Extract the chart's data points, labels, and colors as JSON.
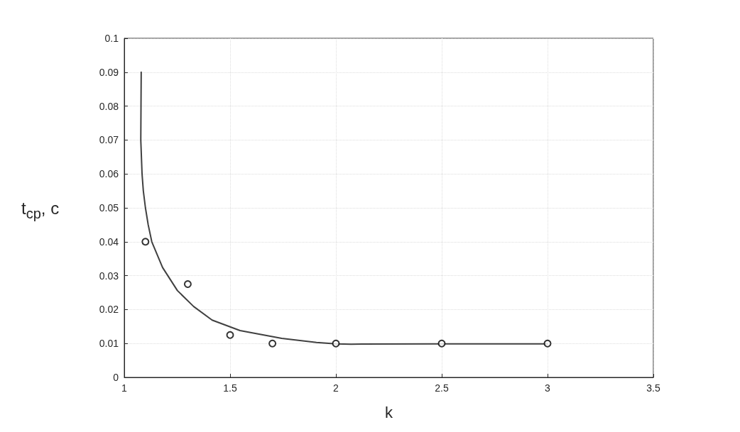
{
  "chart_data": {
    "type": "line",
    "xlabel": "k",
    "ylabel": "t$_{cp}$, c",
    "xlim": [
      1,
      3.5
    ],
    "xticks": [
      1,
      1.5,
      2,
      2.5,
      3,
      3.5
    ],
    "ylim": [
      0,
      0.1
    ],
    "yticks": [
      0,
      0.01,
      0.02,
      0.03,
      0.04,
      0.05,
      0.06,
      0.07,
      0.08,
      0.09,
      0.1
    ],
    "grid": true,
    "series": [
      {
        "color": "#404040",
        "marker": "none",
        "line_style": "solid",
        "x": [
          1.08,
          1.079,
          1.078,
          1.084,
          1.09,
          1.1,
          1.113,
          1.13,
          1.181,
          1.251,
          1.328,
          1.415,
          1.547,
          1.744,
          1.908,
          2.0,
          2.072,
          2.5,
          3.0
        ],
        "values": [
          0.09,
          0.08,
          0.07,
          0.06,
          0.055,
          0.05,
          0.045,
          0.04,
          0.0324,
          0.0256,
          0.0209,
          0.0169,
          0.0138,
          0.0115,
          0.0103,
          0.0099,
          0.0098,
          0.0099,
          0.0099
        ]
      },
      {
        "type": "scatter",
        "color": "#000000",
        "marker": "circle",
        "x": [
          1.1,
          1.3,
          1.5,
          1.7,
          2,
          2.5,
          3
        ],
        "values": [
          0.04,
          0.0275,
          0.0125,
          0.01,
          0.01,
          0.01,
          0.01
        ]
      }
    ]
  }
}
